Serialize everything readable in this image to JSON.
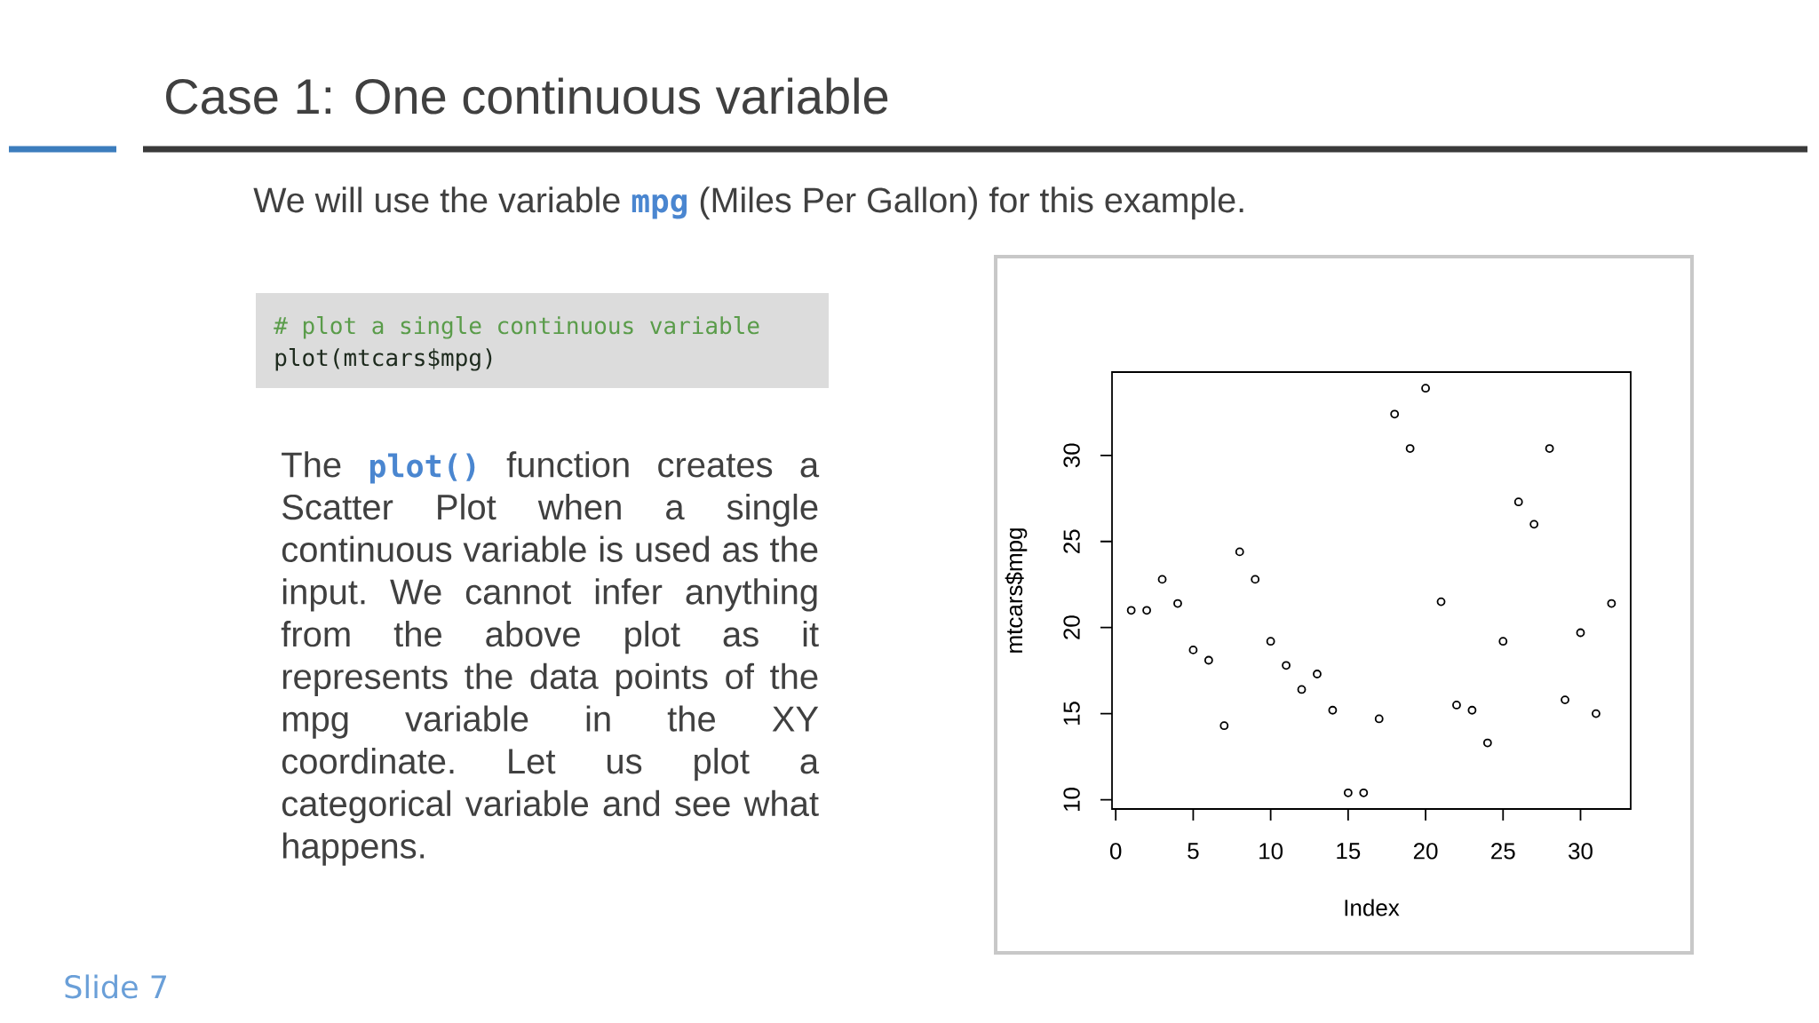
{
  "chart_data": {
    "type": "scatter",
    "title": "Case 1: One continuous variable",
    "subtitle": "We will use the variable **mpg** (Miles Per Gallon) for this example.",
    "xlabel": "Index",
    "ylabel": "mtcars$mpg",
    "x": [
      1,
      2,
      3,
      4,
      5,
      6,
      7,
      8,
      9,
      10,
      11,
      12,
      13,
      14,
      15,
      16,
      17,
      18,
      19,
      20,
      21,
      22,
      23,
      24,
      25,
      26,
      27,
      28,
      29,
      30,
      31,
      32
    ],
    "values": [
      21.0,
      21.0,
      22.8,
      21.4,
      18.7,
      18.1,
      14.3,
      24.4,
      22.8,
      19.2,
      17.8,
      16.4,
      17.3,
      15.2,
      10.4,
      10.4,
      14.7,
      32.4,
      30.4,
      33.9,
      21.5,
      15.5,
      15.2,
      13.3,
      19.2,
      27.3,
      26.0,
      30.4,
      15.8,
      19.7,
      15.0,
      21.4
    ],
    "color": "#000000",
    "marker": "circle",
    "xlim": [
      -0.24,
      33.24
    ],
    "ylim": [
      9.46,
      34.84
    ],
    "xticks": [
      0,
      5,
      10,
      15,
      20,
      25,
      30
    ],
    "yticks": [
      10,
      15,
      20,
      25,
      30
    ],
    "annotations": [
      "# plot a single continuous variable",
      "plot(mtcars$mpg)",
      "The **plot()** function creates a Scatter Plot when a single continuous variable is used as the input. We cannot infer anything from the above plot as it represents the data points of the mpg variable in the XY coordinate. Let us plot a categorical variable and see what happens.",
      "Slide 7"
    ]
  }
}
